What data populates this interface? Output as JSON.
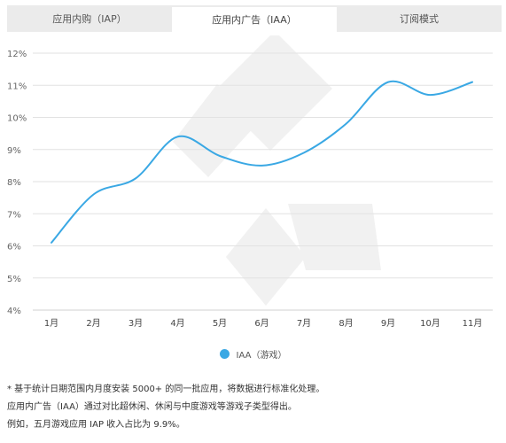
{
  "tabs": [
    {
      "label": "应用内购（IAP）",
      "active": false
    },
    {
      "label": "应用内广告（IAA）",
      "active": true
    },
    {
      "label": "订阅模式",
      "active": false
    }
  ],
  "colors": {
    "line": "#3aa8e4",
    "grid": "#e2e2e2",
    "watermark": "#f1f1f1"
  },
  "chart_data": {
    "type": "line",
    "categories": [
      "1月",
      "2月",
      "3月",
      "4月",
      "5月",
      "6月",
      "7月",
      "8月",
      "9月",
      "10月",
      "11月"
    ],
    "series": [
      {
        "name": "IAA（游戏）",
        "values": [
          6.1,
          7.6,
          8.1,
          9.4,
          8.8,
          8.5,
          8.9,
          9.8,
          11.1,
          10.7,
          11.1
        ]
      }
    ],
    "y_ticks": [
      "4%",
      "5%",
      "6%",
      "7%",
      "8%",
      "9%",
      "10%",
      "11%",
      "12%"
    ],
    "ylim": [
      4,
      12
    ],
    "grid": true,
    "legend_position": "bottom-center"
  },
  "notes": [
    "* 基于统计日期范围内月度安装 5000+ 的同一批应用，将数据进行标准化处理。",
    "应用内广告（IAA）通过对比超休闲、休闲与中度游戏等游戏子类型得出。",
    "例如，五月游戏应用 IAP 收入占比为 9.9%。"
  ]
}
